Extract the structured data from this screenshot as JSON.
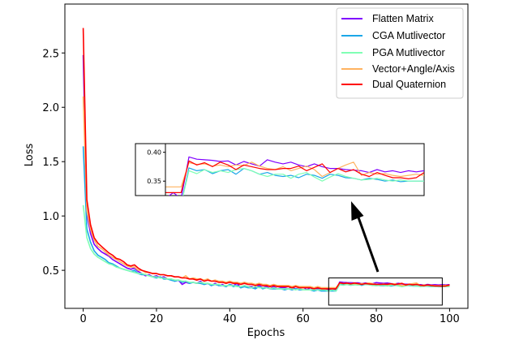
{
  "chart_data": {
    "type": "line",
    "title": "",
    "xlabel": "Epochs",
    "ylabel": "Loss",
    "xlim": [
      -5,
      105
    ],
    "ylim": [
      0.15,
      2.95
    ],
    "xticks": [
      "0",
      "20",
      "40",
      "60",
      "80",
      "100"
    ],
    "yticks": [
      "0.5",
      "1.0",
      "1.5",
      "2.0",
      "2.5"
    ],
    "legend_position": "top-right",
    "epochs_start": 0,
    "series": [
      {
        "name": "Flatten Matrix",
        "color": "#8000ff",
        "values": [
          2.48,
          1.02,
          0.84,
          0.74,
          0.7,
          0.67,
          0.65,
          0.63,
          0.6,
          0.58,
          0.56,
          0.54,
          0.52,
          0.51,
          0.52,
          0.49,
          0.47,
          0.45,
          0.46,
          0.44,
          0.45,
          0.43,
          0.44,
          0.42,
          0.42,
          0.4,
          0.41,
          0.37,
          0.39,
          0.38,
          0.39,
          0.38,
          0.4,
          0.37,
          0.38,
          0.36,
          0.38,
          0.36,
          0.37,
          0.35,
          0.37,
          0.36,
          0.38,
          0.34,
          0.36,
          0.35,
          0.35,
          0.34,
          0.36,
          0.34,
          0.35,
          0.33,
          0.35,
          0.33,
          0.34,
          0.34,
          0.33,
          0.34,
          0.33,
          0.33,
          0.35,
          0.32,
          0.34,
          0.32,
          0.33,
          0.32,
          0.33,
          0.32,
          0.33,
          0.32,
          0.392,
          0.388,
          0.387,
          0.386,
          0.384,
          0.385,
          0.378,
          0.384,
          0.38,
          0.376,
          0.387,
          0.383,
          0.38,
          0.383,
          0.378,
          0.375,
          0.38,
          0.375,
          0.372,
          0.372,
          0.37,
          0.369,
          0.368,
          0.365,
          0.37,
          0.366,
          0.368,
          0.365,
          0.368,
          0.366,
          0.368
        ]
      },
      {
        "name": "CGA Mutlivector",
        "color": "#1ca7e8",
        "values": [
          1.64,
          0.88,
          0.76,
          0.68,
          0.64,
          0.62,
          0.6,
          0.57,
          0.56,
          0.54,
          0.52,
          0.51,
          0.5,
          0.49,
          0.5,
          0.47,
          0.46,
          0.46,
          0.45,
          0.44,
          0.43,
          0.44,
          0.42,
          0.42,
          0.41,
          0.4,
          0.41,
          0.39,
          0.4,
          0.38,
          0.39,
          0.38,
          0.38,
          0.37,
          0.38,
          0.36,
          0.37,
          0.36,
          0.36,
          0.35,
          0.37,
          0.35,
          0.36,
          0.34,
          0.35,
          0.34,
          0.34,
          0.33,
          0.35,
          0.33,
          0.34,
          0.33,
          0.33,
          0.33,
          0.33,
          0.32,
          0.33,
          0.32,
          0.33,
          0.32,
          0.32,
          0.32,
          0.32,
          0.31,
          0.32,
          0.31,
          0.31,
          0.31,
          0.31,
          0.31,
          0.373,
          0.368,
          0.37,
          0.363,
          0.368,
          0.37,
          0.362,
          0.372,
          0.368,
          0.362,
          0.365,
          0.36,
          0.358,
          0.36,
          0.356,
          0.362,
          0.36,
          0.355,
          0.362,
          0.36,
          0.356,
          0.355,
          0.352,
          0.355,
          0.353,
          0.35,
          0.352,
          0.349,
          0.35,
          0.35,
          0.35
        ]
      },
      {
        "name": "PGA Mutlivector",
        "color": "#80ffb4",
        "values": [
          1.1,
          0.8,
          0.7,
          0.65,
          0.62,
          0.6,
          0.58,
          0.56,
          0.55,
          0.53,
          0.52,
          0.51,
          0.5,
          0.49,
          0.48,
          0.47,
          0.47,
          0.46,
          0.45,
          0.44,
          0.44,
          0.43,
          0.43,
          0.42,
          0.42,
          0.41,
          0.41,
          0.4,
          0.4,
          0.39,
          0.39,
          0.38,
          0.39,
          0.38,
          0.38,
          0.37,
          0.37,
          0.37,
          0.36,
          0.36,
          0.36,
          0.36,
          0.35,
          0.35,
          0.36,
          0.35,
          0.34,
          0.35,
          0.34,
          0.34,
          0.34,
          0.33,
          0.34,
          0.33,
          0.33,
          0.33,
          0.33,
          0.33,
          0.32,
          0.33,
          0.32,
          0.32,
          0.32,
          0.32,
          0.32,
          0.32,
          0.32,
          0.31,
          0.32,
          0.31,
          0.368,
          0.363,
          0.37,
          0.365,
          0.368,
          0.365,
          0.37,
          0.372,
          0.368,
          0.362,
          0.358,
          0.362,
          0.362,
          0.355,
          0.362,
          0.365,
          0.357,
          0.35,
          0.357,
          0.363,
          0.358,
          0.355,
          0.352,
          0.353,
          0.355,
          0.352,
          0.35,
          0.352,
          0.35,
          0.35,
          0.35
        ]
      },
      {
        "name": "Vector+Angle/Axis",
        "color": "#ffb360",
        "values": [
          2.1,
          1.05,
          0.88,
          0.78,
          0.72,
          0.7,
          0.67,
          0.64,
          0.62,
          0.6,
          0.58,
          0.56,
          0.54,
          0.53,
          0.53,
          0.5,
          0.5,
          0.48,
          0.48,
          0.47,
          0.47,
          0.46,
          0.46,
          0.45,
          0.45,
          0.44,
          0.44,
          0.43,
          0.45,
          0.42,
          0.43,
          0.42,
          0.42,
          0.41,
          0.42,
          0.4,
          0.41,
          0.4,
          0.4,
          0.39,
          0.4,
          0.39,
          0.39,
          0.38,
          0.39,
          0.38,
          0.38,
          0.37,
          0.38,
          0.37,
          0.37,
          0.36,
          0.37,
          0.36,
          0.36,
          0.36,
          0.36,
          0.35,
          0.36,
          0.35,
          0.35,
          0.35,
          0.35,
          0.34,
          0.35,
          0.34,
          0.34,
          0.34,
          0.34,
          0.34,
          0.382,
          0.379,
          0.38,
          0.376,
          0.378,
          0.375,
          0.378,
          0.377,
          0.383,
          0.376,
          0.372,
          0.37,
          0.375,
          0.368,
          0.372,
          0.376,
          0.37,
          0.358,
          0.365,
          0.372,
          0.378,
          0.383,
          0.36,
          0.365,
          0.362,
          0.363,
          0.36,
          0.358,
          0.36,
          0.362,
          0.36
        ]
      },
      {
        "name": "Dual Quaternion",
        "color": "#ff0000",
        "values": [
          2.73,
          1.15,
          0.92,
          0.8,
          0.75,
          0.72,
          0.69,
          0.66,
          0.64,
          0.61,
          0.6,
          0.58,
          0.55,
          0.54,
          0.55,
          0.52,
          0.5,
          0.49,
          0.48,
          0.47,
          0.47,
          0.46,
          0.46,
          0.45,
          0.45,
          0.44,
          0.44,
          0.43,
          0.43,
          0.42,
          0.42,
          0.41,
          0.42,
          0.4,
          0.41,
          0.4,
          0.4,
          0.39,
          0.39,
          0.38,
          0.39,
          0.38,
          0.38,
          0.37,
          0.38,
          0.37,
          0.37,
          0.36,
          0.37,
          0.36,
          0.36,
          0.35,
          0.36,
          0.35,
          0.35,
          0.35,
          0.35,
          0.34,
          0.35,
          0.34,
          0.34,
          0.34,
          0.34,
          0.33,
          0.34,
          0.33,
          0.33,
          0.33,
          0.33,
          0.33,
          0.385,
          0.378,
          0.382,
          0.375,
          0.383,
          0.378,
          0.37,
          0.378,
          0.375,
          0.372,
          0.37,
          0.37,
          0.372,
          0.372,
          0.376,
          0.368,
          0.374,
          0.38,
          0.365,
          0.372,
          0.366,
          0.37,
          0.362,
          0.358,
          0.365,
          0.36,
          0.356,
          0.356,
          0.354,
          0.356,
          0.365
        ]
      }
    ],
    "inset": {
      "xlim": [
        67,
        100
      ],
      "ylim": [
        0.325,
        0.415
      ],
      "yticks": [
        "0.40",
        "0.35"
      ],
      "source_box_xrange": [
        67,
        98
      ],
      "source_box_yrange": [
        0.18,
        0.43
      ]
    }
  }
}
